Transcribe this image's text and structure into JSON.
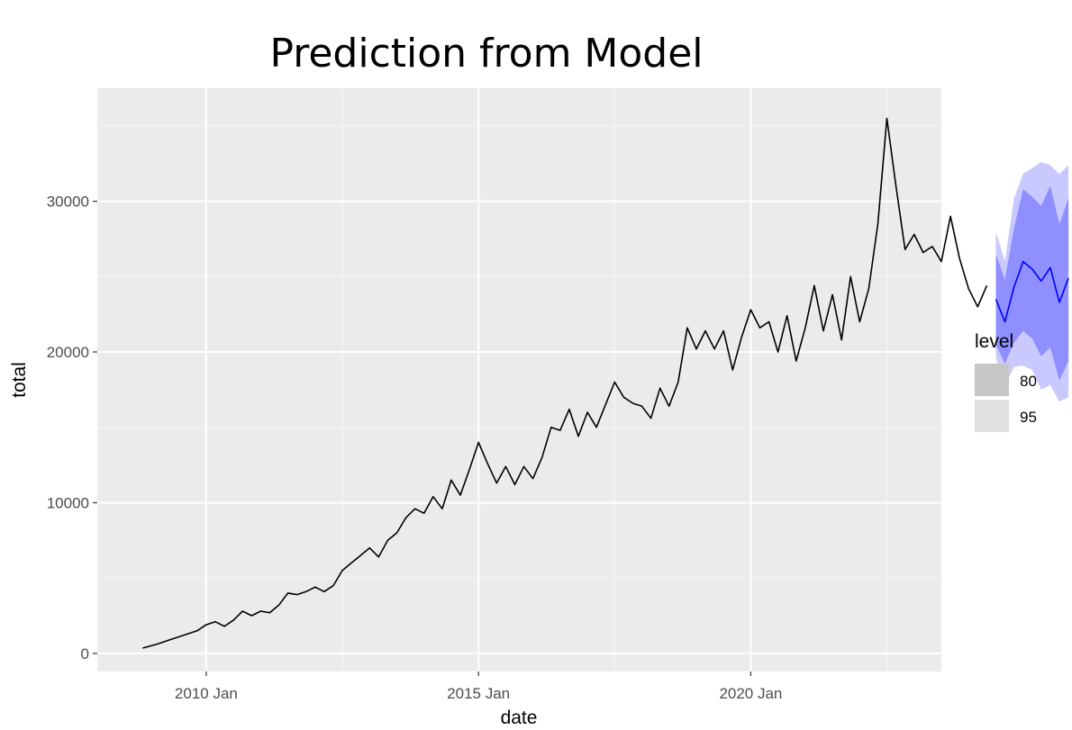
{
  "chart_data": {
    "type": "line",
    "title": "Prediction from Model",
    "xlabel": "date",
    "ylabel": "total",
    "x_range": [
      "2008-01",
      "2023-07"
    ],
    "ylim": [
      -1200,
      37500
    ],
    "x_ticks": [
      {
        "date": "2010-01",
        "label": "2010 Jan"
      },
      {
        "date": "2015-01",
        "label": "2015 Jan"
      },
      {
        "date": "2020-01",
        "label": "2020 Jan"
      }
    ],
    "y_ticks": [
      0,
      10000,
      20000,
      30000
    ],
    "y_tick_labels": [
      "0",
      "10000",
      "20000",
      "30000"
    ],
    "grid": true,
    "legend": {
      "position": "right",
      "title": "level",
      "entries": [
        {
          "label": "80",
          "swatch_color": "#c6c6c6"
        },
        {
          "label": "95",
          "swatch_color": "#e0e0e0"
        }
      ]
    },
    "series": [
      {
        "kind": "observed",
        "color": "#000000",
        "points": [
          [
            "2008-11",
            350
          ],
          [
            "2009-02",
            600
          ],
          [
            "2009-05",
            900
          ],
          [
            "2009-08",
            1200
          ],
          [
            "2009-11",
            1500
          ],
          [
            "2010-01",
            1900
          ],
          [
            "2010-03",
            2100
          ],
          [
            "2010-05",
            1800
          ],
          [
            "2010-07",
            2200
          ],
          [
            "2010-09",
            2800
          ],
          [
            "2010-11",
            2500
          ],
          [
            "2011-01",
            2800
          ],
          [
            "2011-03",
            2700
          ],
          [
            "2011-05",
            3200
          ],
          [
            "2011-07",
            4000
          ],
          [
            "2011-09",
            3900
          ],
          [
            "2011-11",
            4100
          ],
          [
            "2012-01",
            4400
          ],
          [
            "2012-03",
            4100
          ],
          [
            "2012-05",
            4500
          ],
          [
            "2012-07",
            5500
          ],
          [
            "2012-09",
            6000
          ],
          [
            "2012-11",
            6500
          ],
          [
            "2013-01",
            7000
          ],
          [
            "2013-03",
            6400
          ],
          [
            "2013-05",
            7500
          ],
          [
            "2013-07",
            8000
          ],
          [
            "2013-09",
            9000
          ],
          [
            "2013-11",
            9600
          ],
          [
            "2014-01",
            9300
          ],
          [
            "2014-03",
            10400
          ],
          [
            "2014-05",
            9600
          ],
          [
            "2014-07",
            11500
          ],
          [
            "2014-09",
            10500
          ],
          [
            "2014-11",
            12200
          ],
          [
            "2015-01",
            14000
          ],
          [
            "2015-03",
            12600
          ],
          [
            "2015-05",
            11300
          ],
          [
            "2015-07",
            12400
          ],
          [
            "2015-09",
            11200
          ],
          [
            "2015-11",
            12400
          ],
          [
            "2016-01",
            11600
          ],
          [
            "2016-03",
            13000
          ],
          [
            "2016-05",
            15000
          ],
          [
            "2016-07",
            14800
          ],
          [
            "2016-09",
            16200
          ],
          [
            "2016-11",
            14400
          ],
          [
            "2017-01",
            16000
          ],
          [
            "2017-03",
            15000
          ],
          [
            "2017-05",
            16500
          ],
          [
            "2017-07",
            18000
          ],
          [
            "2017-09",
            17000
          ],
          [
            "2017-11",
            16600
          ],
          [
            "2018-01",
            16400
          ],
          [
            "2018-03",
            15600
          ],
          [
            "2018-05",
            17600
          ],
          [
            "2018-07",
            16400
          ],
          [
            "2018-09",
            18000
          ],
          [
            "2018-11",
            21600
          ],
          [
            "2019-01",
            20200
          ],
          [
            "2019-03",
            21400
          ],
          [
            "2019-05",
            20200
          ],
          [
            "2019-07",
            21400
          ],
          [
            "2019-09",
            18800
          ],
          [
            "2019-11",
            21000
          ],
          [
            "2020-01",
            22800
          ],
          [
            "2020-03",
            21600
          ],
          [
            "2020-05",
            22000
          ],
          [
            "2020-07",
            20000
          ],
          [
            "2020-09",
            22400
          ],
          [
            "2020-11",
            19400
          ],
          [
            "2021-01",
            21600
          ],
          [
            "2021-03",
            24400
          ],
          [
            "2021-05",
            21400
          ],
          [
            "2021-07",
            23800
          ],
          [
            "2021-09",
            20800
          ],
          [
            "2021-11",
            25000
          ],
          [
            "2022-01",
            22000
          ],
          [
            "2022-03",
            24200
          ],
          [
            "2022-05",
            28500
          ],
          [
            "2022-07",
            35500
          ],
          [
            "2022-09",
            31000
          ],
          [
            "2022-11",
            26800
          ],
          [
            "2023-01",
            27800
          ],
          [
            "2023-03",
            26600
          ],
          [
            "2023-05",
            27000
          ],
          [
            "2023-07",
            26000
          ],
          [
            "2023-09",
            29000
          ],
          [
            "2023-11",
            26200
          ],
          [
            "2024-01",
            24200
          ],
          [
            "2024-03",
            23000
          ],
          [
            "2024-05",
            24400
          ]
        ]
      },
      {
        "kind": "forecast",
        "color": "#0000ff",
        "band80_color": "#8f8fff",
        "band95_color": "#c9c9ff",
        "points": [
          [
            "2024-07",
            23500,
            20500,
            26500,
            19600,
            28000
          ],
          [
            "2024-09",
            22000,
            19200,
            24800,
            17700,
            26000
          ],
          [
            "2024-11",
            24300,
            20600,
            28200,
            19000,
            30200
          ],
          [
            "2025-01",
            26000,
            21400,
            30800,
            19100,
            31800
          ],
          [
            "2025-03",
            25500,
            20900,
            30300,
            18800,
            32200
          ],
          [
            "2025-05",
            24700,
            19700,
            29700,
            17500,
            32600
          ],
          [
            "2025-07",
            25600,
            20300,
            31000,
            17800,
            32400
          ],
          [
            "2025-09",
            23300,
            18100,
            28500,
            16700,
            31800
          ],
          [
            "2025-11",
            24900,
            19400,
            30200,
            17000,
            32400
          ]
        ]
      }
    ]
  }
}
